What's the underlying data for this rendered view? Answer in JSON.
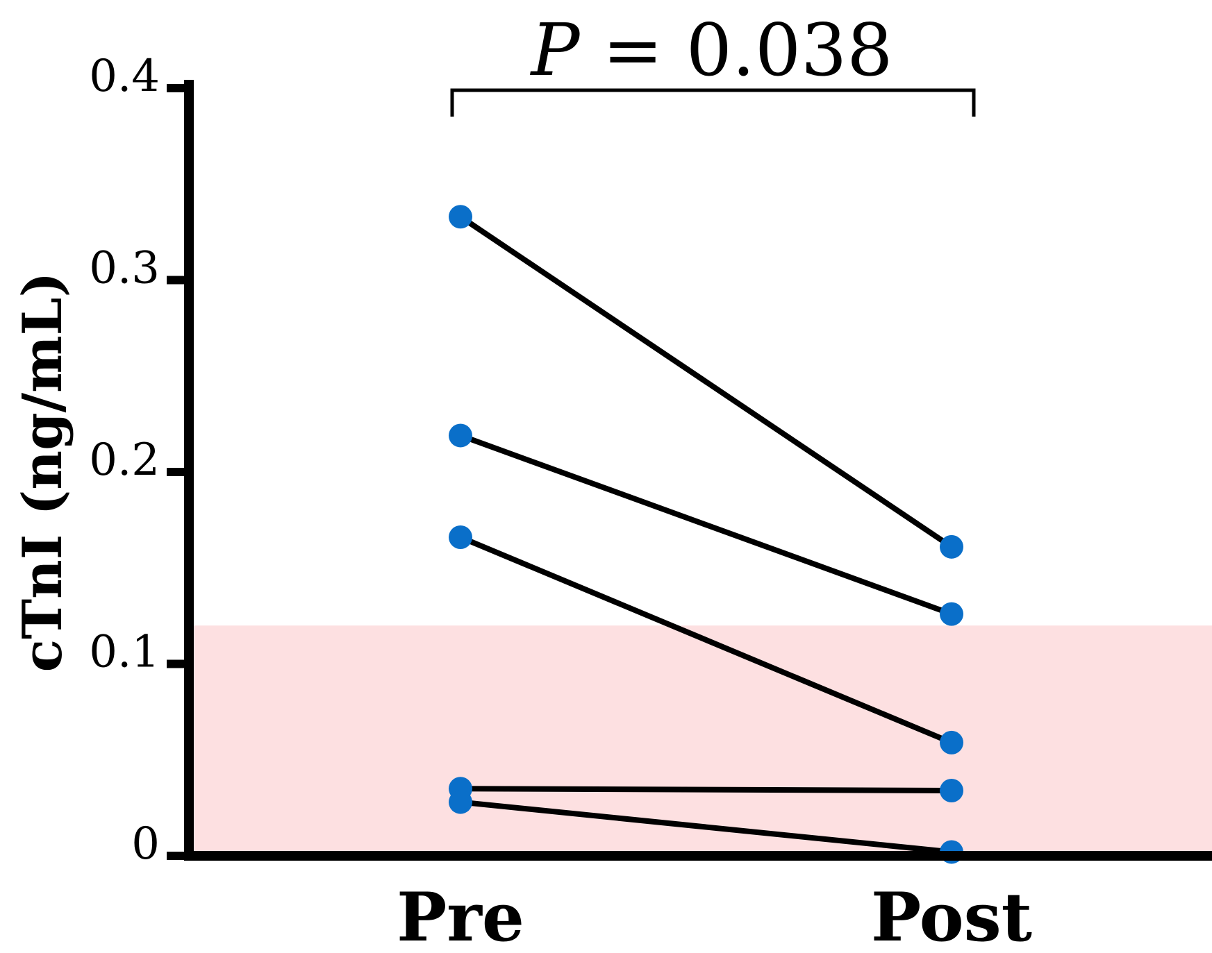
{
  "chart_data": {
    "type": "line",
    "categories": [
      "Pre",
      "Post"
    ],
    "ylabel": "cTnI (ng/mL)",
    "ylim": [
      0,
      0.4
    ],
    "yticks": [
      "0",
      "0.1",
      "0.2",
      "0.3",
      "0.4"
    ],
    "ytick_values": [
      0,
      0.1,
      0.2,
      0.3,
      0.4
    ],
    "reference_band": {
      "from": 0,
      "to": 0.12,
      "color": "#fde0e1"
    },
    "point_color": "#0a6fc9",
    "line_color": "#000000",
    "grid": false,
    "series": [
      {
        "values": [
          0.333,
          0.161
        ]
      },
      {
        "values": [
          0.219,
          0.126
        ]
      },
      {
        "values": [
          0.166,
          0.059
        ]
      },
      {
        "values": [
          0.035,
          0.034
        ]
      },
      {
        "values": [
          0.028,
          0.002
        ]
      }
    ],
    "annotation": {
      "italic_part": "P",
      "rest": " = 0.038"
    }
  }
}
